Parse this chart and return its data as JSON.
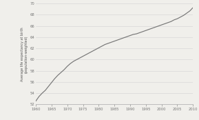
{
  "title": "",
  "ylabel": "Average life expectancy at birth\n(population-weighted)",
  "xlabel": "",
  "xlim": [
    1960,
    2010
  ],
  "ylim": [
    52,
    70
  ],
  "yticks": [
    52,
    54,
    56,
    58,
    60,
    62,
    64,
    66,
    68,
    70
  ],
  "xticks": [
    1960,
    1965,
    1970,
    1975,
    1980,
    1985,
    1990,
    1995,
    2000,
    2005,
    2010
  ],
  "line_color": "#777777",
  "background_color": "#f0efeb",
  "grid_color": "#d8d8d8",
  "x": [
    1960,
    1961,
    1962,
    1963,
    1964,
    1965,
    1966,
    1967,
    1968,
    1969,
    1970,
    1971,
    1972,
    1973,
    1974,
    1975,
    1976,
    1977,
    1978,
    1979,
    1980,
    1981,
    1982,
    1983,
    1984,
    1985,
    1986,
    1987,
    1988,
    1989,
    1990,
    1991,
    1992,
    1993,
    1994,
    1995,
    1996,
    1997,
    1998,
    1999,
    2000,
    2001,
    2002,
    2003,
    2004,
    2005,
    2006,
    2007,
    2008,
    2009,
    2010
  ],
  "y": [
    52.6,
    53.4,
    54.0,
    54.5,
    55.2,
    55.9,
    56.6,
    57.2,
    57.7,
    58.2,
    58.8,
    59.3,
    59.7,
    60.0,
    60.3,
    60.6,
    60.9,
    61.2,
    61.5,
    61.8,
    62.1,
    62.4,
    62.7,
    62.9,
    63.1,
    63.3,
    63.5,
    63.7,
    63.9,
    64.1,
    64.3,
    64.5,
    64.6,
    64.8,
    65.0,
    65.2,
    65.4,
    65.6,
    65.8,
    66.0,
    66.2,
    66.4,
    66.6,
    66.8,
    67.1,
    67.3,
    67.6,
    67.9,
    68.3,
    68.7,
    69.3
  ]
}
